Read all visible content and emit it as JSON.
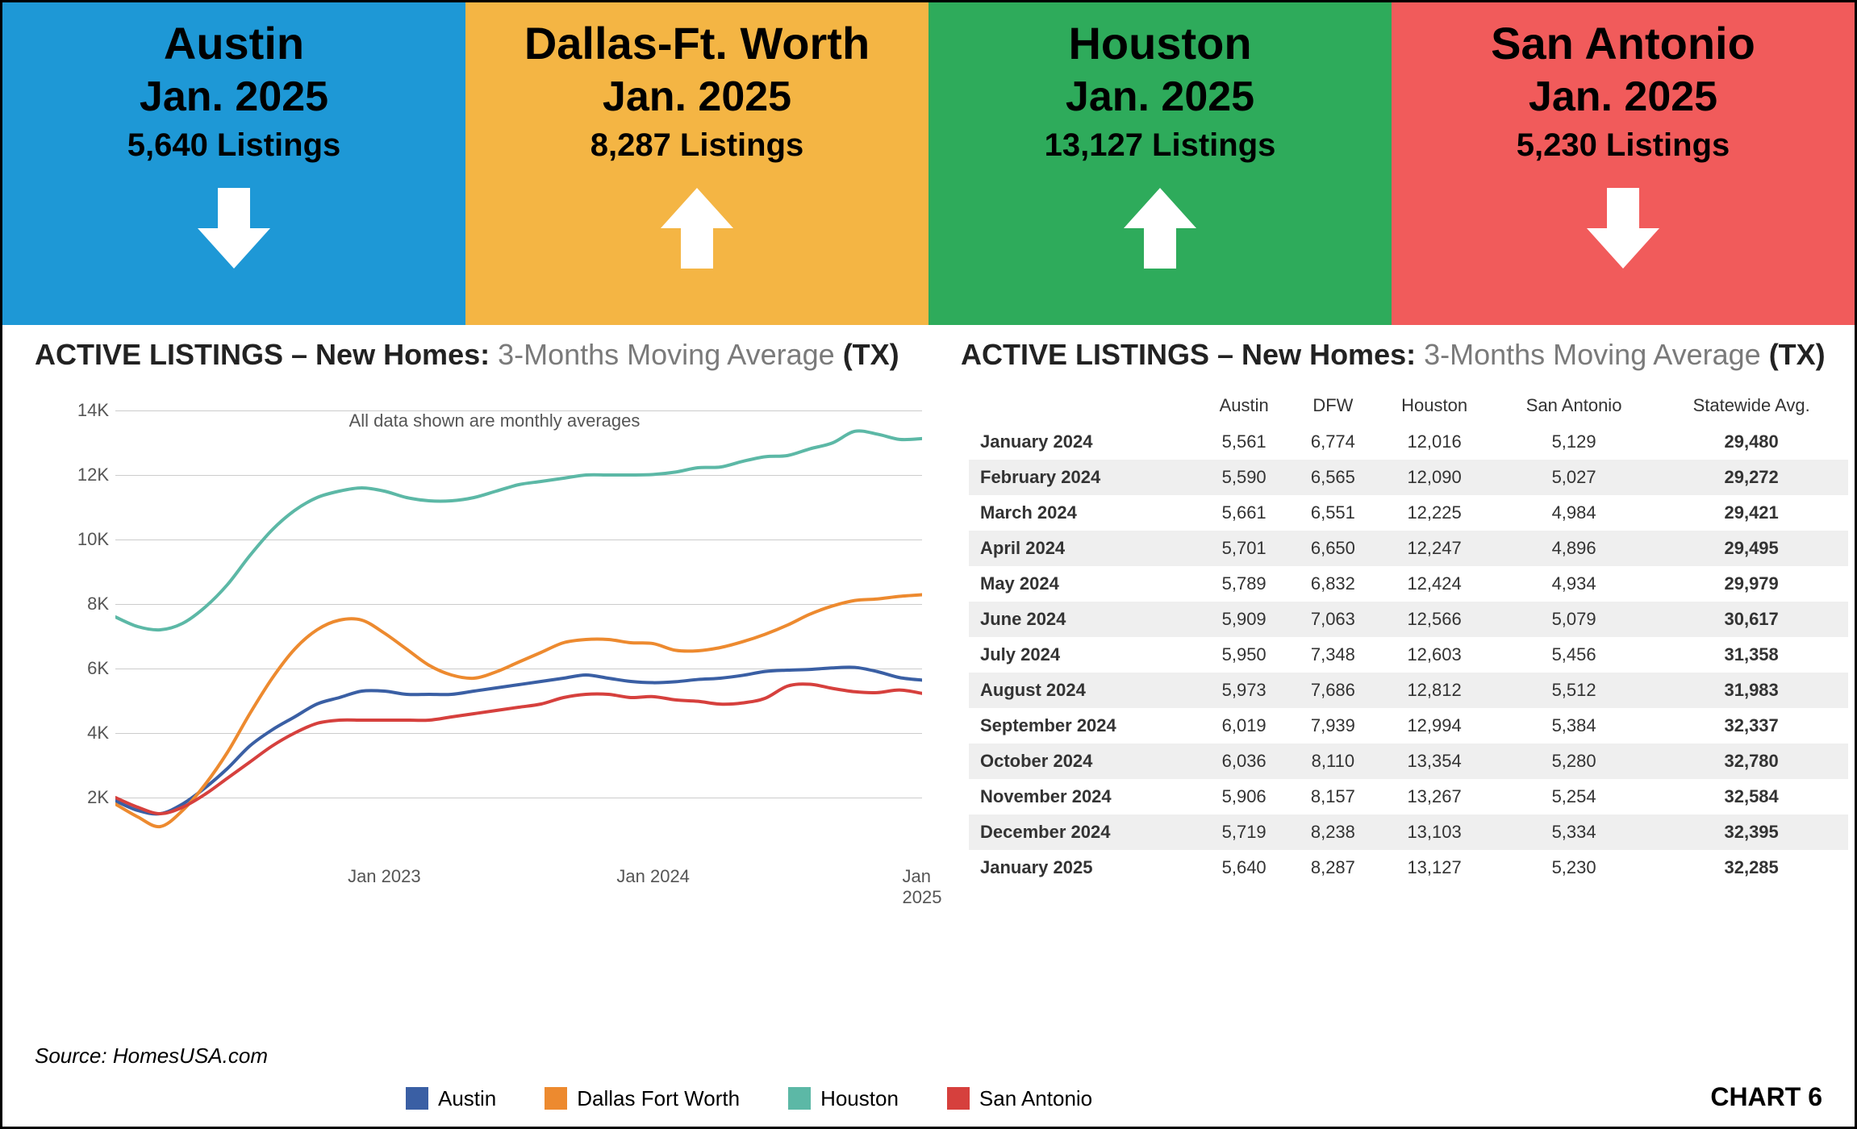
{
  "cards": [
    {
      "city": "Austin",
      "period": "Jan. 2025",
      "listings": "5,640 Listings",
      "bg": "#1e98d6",
      "arrow": "down"
    },
    {
      "city": "Dallas-Ft. Worth",
      "period": "Jan. 2025",
      "listings": "8,287 Listings",
      "bg": "#f4b544",
      "arrow": "up"
    },
    {
      "city": "Houston",
      "period": "Jan. 2025",
      "listings": "13,127 Listings",
      "bg": "#2eab5b",
      "arrow": "up"
    },
    {
      "city": "San Antonio",
      "period": "Jan. 2025",
      "listings": "5,230 Listings",
      "bg": "#f15b5b",
      "arrow": "down"
    }
  ],
  "section_title": {
    "prefix": "ACTIVE LISTINGS – New Homes: ",
    "mid": "3-Months  Moving Average ",
    "suffix": "(TX)"
  },
  "chart": {
    "type": "line",
    "ylim": [
      0,
      14000
    ],
    "yticks": [
      2000,
      4000,
      6000,
      8000,
      10000,
      12000,
      14000
    ],
    "ytick_labels": [
      "2K",
      "4K",
      "6K",
      "8K",
      "10K",
      "12K",
      "14K"
    ],
    "x_count": 37,
    "x_ticks": [
      {
        "pos": 12,
        "label": "Jan 2023"
      },
      {
        "pos": 24,
        "label": "Jan 2024"
      },
      {
        "pos": 36,
        "label": "Jan 2025"
      }
    ],
    "grid_color": "#cccccc",
    "background_color": "#ffffff",
    "line_width": 4,
    "series": [
      {
        "name": "Austin",
        "color": "#3a5fa4",
        "values": [
          1900,
          1600,
          1500,
          1800,
          2300,
          2900,
          3600,
          4100,
          4500,
          4900,
          5100,
          5300,
          5300,
          5200,
          5200,
          5200,
          5300,
          5400,
          5500,
          5600,
          5700,
          5800,
          5700,
          5600,
          5561,
          5590,
          5661,
          5701,
          5789,
          5909,
          5950,
          5973,
          6019,
          6036,
          5906,
          5719,
          5640
        ]
      },
      {
        "name": "Dallas Fort Worth",
        "color": "#ed8a2f",
        "values": [
          1800,
          1400,
          1100,
          1600,
          2400,
          3400,
          4600,
          5700,
          6600,
          7200,
          7500,
          7500,
          7100,
          6600,
          6100,
          5800,
          5700,
          5900,
          6200,
          6500,
          6800,
          6900,
          6900,
          6800,
          6774,
          6565,
          6551,
          6650,
          6832,
          7063,
          7348,
          7686,
          7939,
          8110,
          8157,
          8238,
          8287
        ]
      },
      {
        "name": "Houston",
        "color": "#5cb8a6",
        "values": [
          7600,
          7300,
          7200,
          7400,
          7900,
          8600,
          9500,
          10300,
          10900,
          11300,
          11500,
          11600,
          11500,
          11300,
          11200,
          11200,
          11300,
          11500,
          11700,
          11800,
          11900,
          12000,
          12000,
          12000,
          12016,
          12090,
          12225,
          12247,
          12424,
          12566,
          12603,
          12812,
          12994,
          13354,
          13267,
          13103,
          13127
        ]
      },
      {
        "name": "San Antonio",
        "color": "#d6403d",
        "values": [
          2000,
          1700,
          1500,
          1700,
          2100,
          2600,
          3100,
          3600,
          4000,
          4300,
          4400,
          4400,
          4400,
          4400,
          4400,
          4500,
          4600,
          4700,
          4800,
          4900,
          5100,
          5200,
          5200,
          5100,
          5129,
          5027,
          4984,
          4896,
          4934,
          5079,
          5456,
          5512,
          5384,
          5280,
          5254,
          5334,
          5230
        ]
      }
    ],
    "caption": "All data shown are monthly averages"
  },
  "table": {
    "columns": [
      "",
      "Austin",
      "DFW",
      "Houston",
      "San Antonio",
      "Statewide Avg."
    ],
    "rows": [
      [
        "January 2024",
        "5,561",
        "6,774",
        "12,016",
        "5,129",
        "29,480"
      ],
      [
        "February 2024",
        "5,590",
        "6,565",
        "12,090",
        "5,027",
        "29,272"
      ],
      [
        "March 2024",
        "5,661",
        "6,551",
        "12,225",
        "4,984",
        "29,421"
      ],
      [
        "April 2024",
        "5,701",
        "6,650",
        "12,247",
        "4,896",
        "29,495"
      ],
      [
        "May 2024",
        "5,789",
        "6,832",
        "12,424",
        "4,934",
        "29,979"
      ],
      [
        "June 2024",
        "5,909",
        "7,063",
        "12,566",
        "5,079",
        "30,617"
      ],
      [
        "July 2024",
        "5,950",
        "7,348",
        "12,603",
        "5,456",
        "31,358"
      ],
      [
        "August 2024",
        "5,973",
        "7,686",
        "12,812",
        "5,512",
        "31,983"
      ],
      [
        "September 2024",
        "6,019",
        "7,939",
        "12,994",
        "5,384",
        "32,337"
      ],
      [
        "October 2024",
        "6,036",
        "8,110",
        "13,354",
        "5,280",
        "32,780"
      ],
      [
        "November 2024",
        "5,906",
        "8,157",
        "13,267",
        "5,254",
        "32,584"
      ],
      [
        "December 2024",
        "5,719",
        "8,238",
        "13,103",
        "5,334",
        "32,395"
      ],
      [
        "January 2025",
        "5,640",
        "8,287",
        "13,127",
        "5,230",
        "32,285"
      ]
    ]
  },
  "legend": [
    {
      "label": "Austin",
      "color": "#3a5fa4"
    },
    {
      "label": "Dallas Fort Worth",
      "color": "#ed8a2f"
    },
    {
      "label": "Houston",
      "color": "#5cb8a6"
    },
    {
      "label": "San Antonio",
      "color": "#d6403d"
    }
  ],
  "source": "Source: HomesUSA.com",
  "chart_label": "CHART 6"
}
